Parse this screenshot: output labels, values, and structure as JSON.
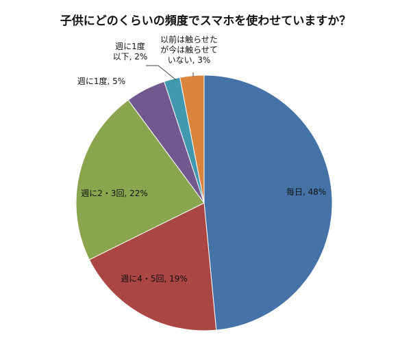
{
  "chart_data": {
    "type": "pie",
    "title": "子供にどのくらいの頻度でスマホを使わせていますか？",
    "legend": "none",
    "slices": [
      {
        "label": "毎日",
        "value": 48,
        "value_label": "48%",
        "color": "#4572A7",
        "lines": [
          "毎日, 48%"
        ]
      },
      {
        "label": "週に4・5回",
        "value": 19,
        "value_label": "19%",
        "color": "#AA4643",
        "lines": [
          "週に4・5回, 19%"
        ]
      },
      {
        "label": "週に2・3回",
        "value": 22,
        "value_label": "22%",
        "color": "#89A54E",
        "lines": [
          "週に2・3回, 22%"
        ]
      },
      {
        "label": "週に1度",
        "value": 5,
        "value_label": "5%",
        "color": "#71588F",
        "lines": [
          "週に1度, 5%"
        ]
      },
      {
        "label": "週に1度以下",
        "value": 2,
        "value_label": "2%",
        "color": "#4198AF",
        "lines": [
          "週に1度",
          "以下, 2%"
        ]
      },
      {
        "label": "以前は触らせたが今は触らせていない",
        "value": 3,
        "value_label": "3%",
        "color": "#DB843D",
        "lines": [
          "以前は触らせた",
          "が今は触らせて",
          "いない, 3%"
        ]
      }
    ]
  }
}
